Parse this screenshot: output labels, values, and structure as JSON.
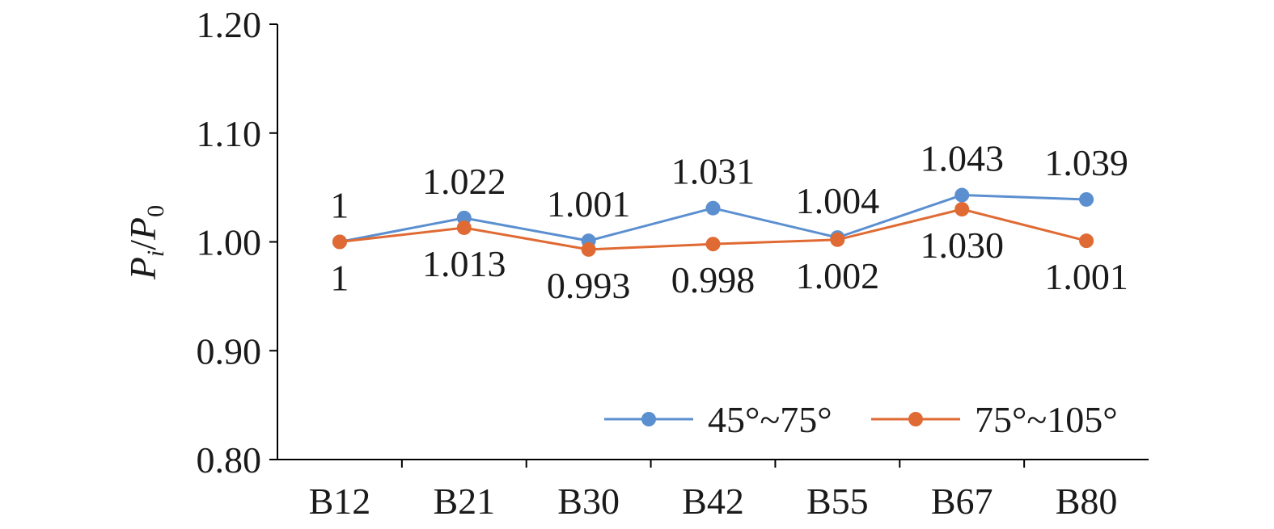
{
  "chart_data": {
    "type": "line",
    "categories": [
      "B12",
      "B21",
      "B30",
      "B42",
      "B55",
      "B67",
      "B80"
    ],
    "ylabel": {
      "main": "P",
      "sub_i": "i",
      "slash": "/",
      "main2": "P",
      "sub_0": "0"
    },
    "ylim": [
      0.8,
      1.2
    ],
    "yticks": [
      "0.80",
      "0.90",
      "1.00",
      "1.10",
      "1.20"
    ],
    "ytick_values": [
      0.8,
      0.9,
      1.0,
      1.1,
      1.2
    ],
    "grid": false,
    "legend_position": "bottom-right",
    "series": [
      {
        "name": "45°~75°",
        "color": "#5b8fd0",
        "values": [
          1,
          1.022,
          1.001,
          1.031,
          1.004,
          1.043,
          1.039
        ],
        "labels": [
          "1",
          "1.022",
          "1.001",
          "1.031",
          "1.004",
          "1.043",
          "1.039"
        ]
      },
      {
        "name": "75°~105°",
        "color": "#e06a33",
        "values": [
          1,
          1.013,
          0.993,
          0.998,
          1.002,
          1.03,
          1.001
        ],
        "labels": [
          "1",
          "1.013",
          "0.993",
          "0.998",
          "1.002",
          "1.030",
          "1.001"
        ]
      }
    ]
  }
}
